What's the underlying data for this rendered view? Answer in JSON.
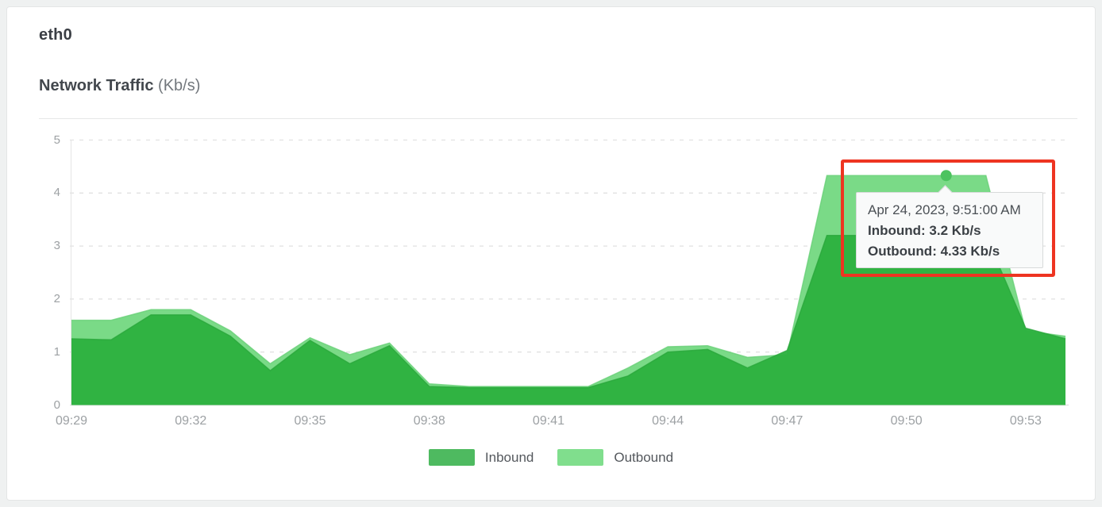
{
  "interface_name": "eth0",
  "card": {
    "title": "eth0",
    "subtitle": "Network Traffic",
    "subtitle_unit": "(Kb/s)"
  },
  "chart_data": {
    "type": "area",
    "title": "Network Traffic (Kb/s)",
    "xlabel": "",
    "ylabel": "Kb/s",
    "ylim": [
      0,
      5
    ],
    "y_ticks": [
      0,
      1,
      2,
      3,
      4,
      5
    ],
    "grid": "horizontal-dashed",
    "legend_position": "bottom-center",
    "x": [
      "09:29",
      "09:30",
      "09:31",
      "09:32",
      "09:33",
      "09:34",
      "09:35",
      "09:36",
      "09:37",
      "09:38",
      "09:39",
      "09:40",
      "09:41",
      "09:42",
      "09:43",
      "09:44",
      "09:45",
      "09:46",
      "09:47",
      "09:48",
      "09:49",
      "09:50",
      "09:51",
      "09:52",
      "09:53",
      "09:54"
    ],
    "x_tick_labels": [
      "09:29",
      "09:32",
      "09:35",
      "09:38",
      "09:41",
      "09:44",
      "09:47",
      "09:50",
      "09:53"
    ],
    "series": [
      {
        "name": "Inbound",
        "fill_color": "#2db140",
        "line_color": "#29a63b",
        "legend_color": "#4eba60",
        "values": [
          1.25,
          1.23,
          1.7,
          1.7,
          1.3,
          0.65,
          1.22,
          0.78,
          1.12,
          0.35,
          0.33,
          0.33,
          0.33,
          0.33,
          0.55,
          1.0,
          1.05,
          0.7,
          1.03,
          3.2,
          3.2,
          3.2,
          3.2,
          3.2,
          1.45,
          1.25
        ]
      },
      {
        "name": "Outbound",
        "fill_color": "#7ada87",
        "line_color": "#68d077",
        "legend_color": "#80de8d",
        "values": [
          1.6,
          1.6,
          1.8,
          1.8,
          1.4,
          0.78,
          1.27,
          0.95,
          1.17,
          0.4,
          0.35,
          0.35,
          0.35,
          0.35,
          0.7,
          1.1,
          1.12,
          0.9,
          0.95,
          4.33,
          4.33,
          4.33,
          4.33,
          4.33,
          1.4,
          1.3
        ]
      }
    ]
  },
  "tooltip": {
    "timestamp": "Apr 24, 2023, 9:51:00 AM",
    "inbound_line": "Inbound: 3.2 Kb/s",
    "outbound_line": "Outbound: 4.33 Kb/s",
    "point_time": "09:51",
    "marker_series": "Outbound",
    "marker_value": 4.33,
    "marker_color": "#4cc35f"
  },
  "annotation": {
    "type": "highlight-rectangle",
    "color": "#ee3421"
  },
  "legend": {
    "items": [
      {
        "label": "Inbound"
      },
      {
        "label": "Outbound"
      }
    ]
  }
}
